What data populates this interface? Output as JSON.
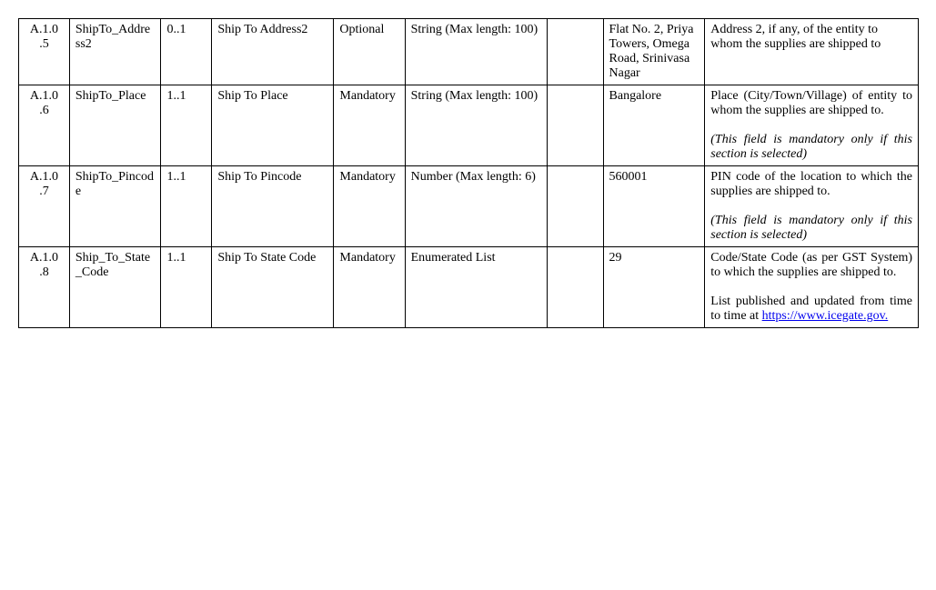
{
  "table": {
    "columns": [
      {
        "class": "col0"
      },
      {
        "class": "col1"
      },
      {
        "class": "col2"
      },
      {
        "class": "col3"
      },
      {
        "class": "col4"
      },
      {
        "class": "col5"
      },
      {
        "class": "col6"
      },
      {
        "class": "col7"
      },
      {
        "class": "col8"
      }
    ],
    "rows": [
      {
        "id": "A.1.0.5",
        "tech_name": "ShipTo_Address2",
        "cardinality": "0..1",
        "display_name": "Ship To Address2",
        "requirement": "Optional",
        "datatype": "String (Max length: 100)",
        "col6": "",
        "example": "Flat No. 2, Priya Towers, Omega Road, Srinivasa Nagar",
        "desc_main": "Address 2, if any, of the entity to whom the supplies are shipped to",
        "desc_note": "",
        "has_link": false,
        "justify": false
      },
      {
        "id": "A.1.0.6",
        "tech_name": "ShipTo_Place",
        "cardinality": "1..1",
        "display_name": "Ship To  Place",
        "requirement": "Mandatory",
        "datatype": "String (Max length: 100)",
        "col6": "",
        "example": "Bangalore",
        "desc_main": "Place (City/Town/Village) of entity to whom the supplies are shipped to.",
        "desc_note": "(This field is mandatory only if this section is selected)",
        "has_link": false,
        "justify": true
      },
      {
        "id": "A.1.0.7",
        "tech_name": "ShipTo_Pincode",
        "cardinality": "1..1",
        "display_name": "Ship To Pincode",
        "requirement": "Mandatory",
        "datatype": "Number (Max length: 6)",
        "col6": "",
        "example": "560001",
        "desc_main": "PIN code of the location to which the supplies are shipped to.",
        "desc_note": "(This field is mandatory only if this section is selected)",
        "has_link": false,
        "justify": true
      },
      {
        "id": "A.1.0.8",
        "tech_name": "Ship_To_State_Code",
        "cardinality": "1..1",
        "display_name": "Ship To State Code",
        "requirement": "Mandatory",
        "datatype": "Enumerated List",
        "col6": "",
        "example": "29",
        "desc_main": "Code/State Code (as per GST System) to which the supplies are shipped to.",
        "desc_extra": "List published and updated from time to time at ",
        "link_text": "https://www.icegate.gov.",
        "desc_note": "",
        "has_link": true,
        "justify": true
      }
    ]
  }
}
